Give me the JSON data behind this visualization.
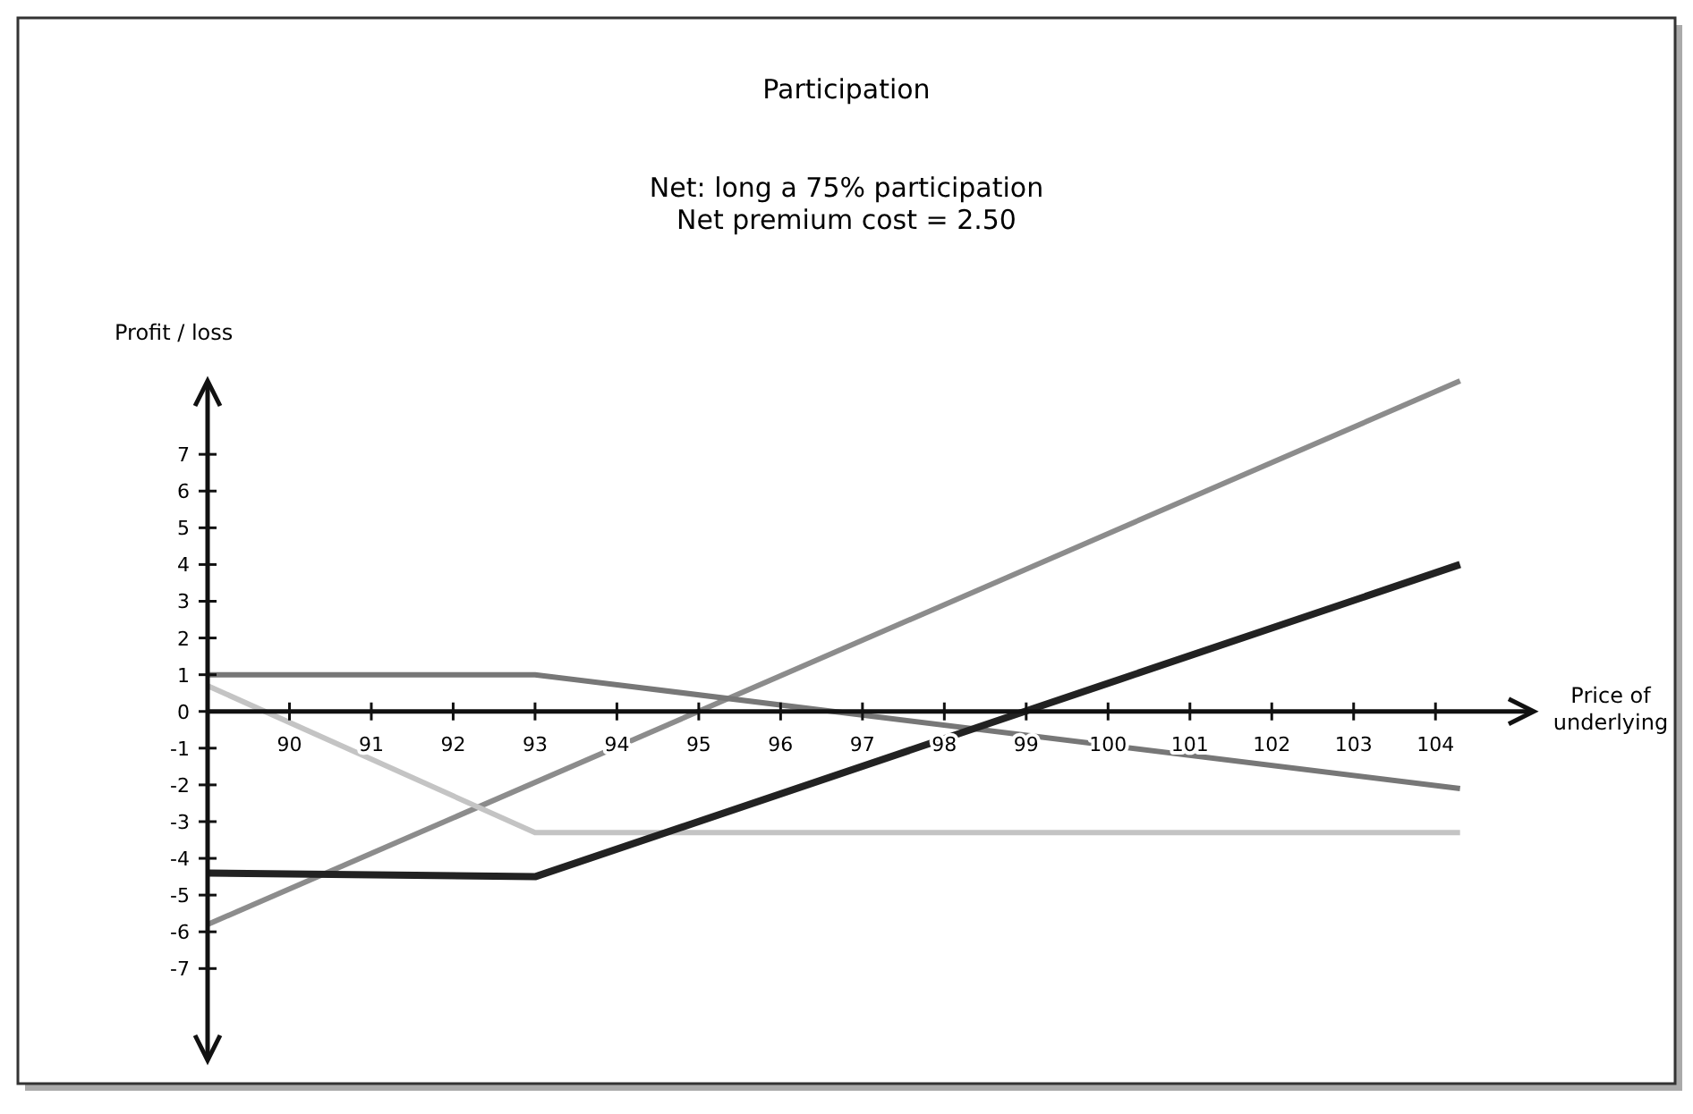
{
  "chart_data": {
    "type": "line",
    "title": "Participation",
    "subtitle": "Net: long a 75% participation\nNet premium cost = 2.50",
    "xlabel": "Price of\nunderlying",
    "ylabel": "Profit / loss",
    "xlim": [
      89,
      105.2
    ],
    "ylim": [
      -9.5,
      9
    ],
    "xticks": [
      90,
      91,
      92,
      93,
      94,
      95,
      96,
      97,
      98,
      99,
      100,
      101,
      102,
      103,
      104
    ],
    "yticks": [
      -7,
      -6,
      -5,
      -4,
      -3,
      -2,
      -1,
      0,
      1,
      2,
      3,
      4,
      5,
      6,
      7
    ],
    "grid": false,
    "line_style": "solid",
    "series": [
      {
        "color": "#8c8c8c",
        "x": [
          89,
          104.3
        ],
        "values": [
          -5.8,
          9
        ]
      },
      {
        "color": "#c4c4c4",
        "x": [
          89,
          93,
          104.3
        ],
        "values": [
          0.7,
          -3.3,
          -3.3
        ]
      },
      {
        "color": "#777777",
        "x": [
          89,
          93,
          104.3
        ],
        "values": [
          1,
          1,
          -2.1
        ]
      },
      {
        "color": "#222222",
        "x": [
          89,
          93,
          104.3
        ],
        "values": [
          -4.4,
          -4.5,
          4
        ]
      }
    ]
  }
}
